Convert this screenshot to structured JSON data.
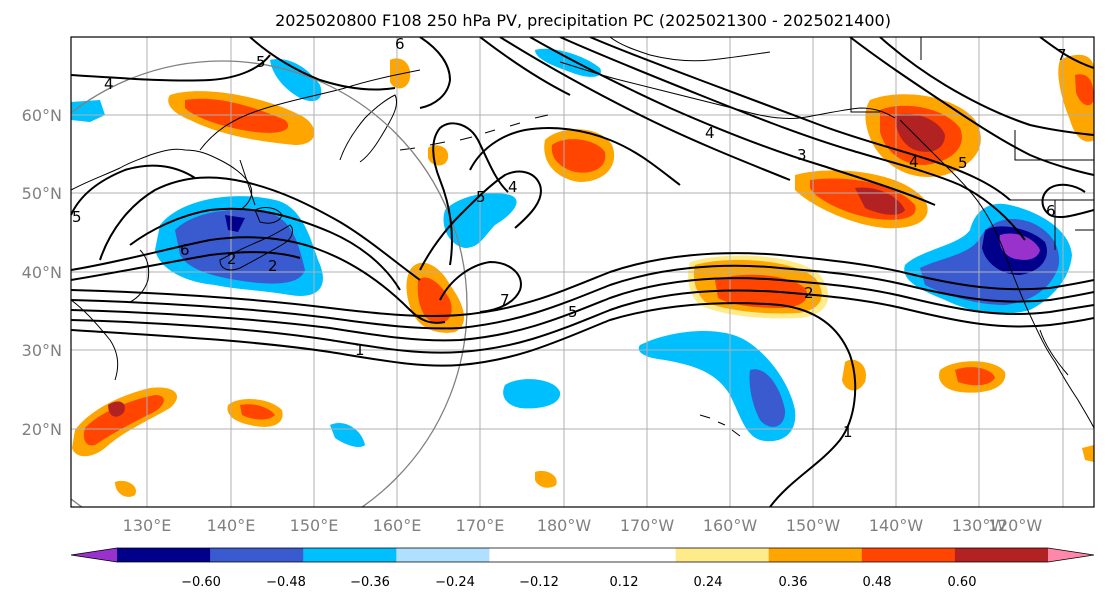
{
  "title": "2025020800 F108 250 hPa PV, precipitation PC (2025021300 - 2025021400)",
  "lat_labels": [
    "60°N",
    "50°N",
    "40°N",
    "30°N",
    "20°N"
  ],
  "lon_labels": [
    "130°E",
    "140°E",
    "150°E",
    "160°E",
    "170°E",
    "180°W",
    "170°W",
    "160°W",
    "150°W",
    "140°W",
    "130°W",
    "120°W"
  ],
  "colorbar": {
    "colors": [
      "#9932cc",
      "#00008b",
      "#3a5bd0",
      "#00bfff",
      "#b0e0ff",
      "#ffffff",
      "#ffffff",
      "#ffeb8a",
      "#ffa500",
      "#ff4500",
      "#b22222",
      "#ff88aa"
    ],
    "labels": [
      "−0.60",
      "−0.48",
      "−0.36",
      "−0.24",
      "−0.12",
      "0.12",
      "0.24",
      "0.36",
      "0.48",
      "0.60"
    ]
  },
  "contour_labels": [
    "4",
    "5",
    "6",
    "5",
    "4",
    "3",
    "2",
    "6",
    "2",
    "1",
    "5",
    "7",
    "5",
    "2",
    "1",
    "4",
    "7",
    "6",
    "4",
    "5"
  ]
}
